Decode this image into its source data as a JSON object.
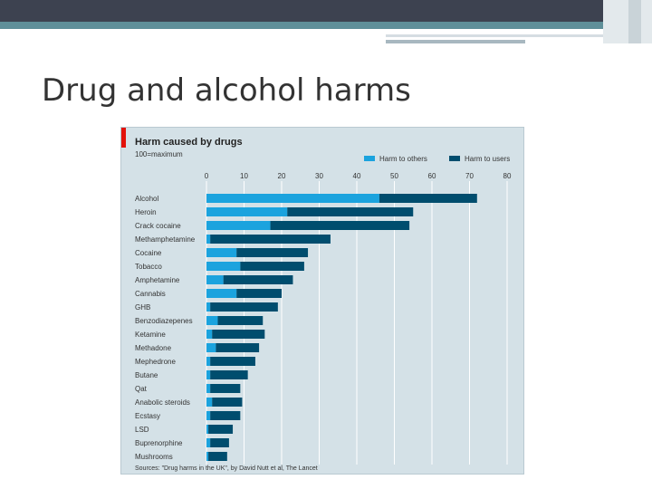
{
  "slide": {
    "title": "Drug and alcohol harms"
  },
  "chart_data": {
    "type": "bar",
    "orientation": "horizontal",
    "stacked": true,
    "title": "Harm caused by drugs",
    "subtitle": "100=maximum",
    "source": "Sources: \"Drug harms in the UK\", by David Nutt et al, The Lancet",
    "xlim": [
      0,
      80
    ],
    "xticks": [
      0,
      10,
      20,
      30,
      40,
      50,
      60,
      70,
      80
    ],
    "grid": true,
    "legend_position": "top-right",
    "categories": [
      "Alcohol",
      "Heroin",
      "Crack cocaine",
      "Methamphetamine",
      "Cocaine",
      "Tobacco",
      "Amphetamine",
      "Cannabis",
      "GHB",
      "Benzodiazepenes",
      "Ketamine",
      "Methadone",
      "Mephedrone",
      "Butane",
      "Qat",
      "Anabolic steroids",
      "Ecstasy",
      "LSD",
      "Buprenorphine",
      "Mushrooms"
    ],
    "series": [
      {
        "name": "Harm to others",
        "color": "#1ba3de",
        "values": [
          46,
          21.5,
          17,
          1,
          8,
          9,
          4.5,
          8,
          1,
          3,
          1.5,
          2.5,
          1,
          1,
          1,
          1.5,
          1,
          0.5,
          1,
          0.5
        ]
      },
      {
        "name": "Harm to users",
        "color": "#004d6e",
        "values": [
          26,
          33.5,
          37,
          32,
          19,
          17,
          18.5,
          12,
          18,
          12,
          14,
          11.5,
          12,
          10,
          8,
          8,
          8,
          6.5,
          5,
          5
        ]
      }
    ]
  }
}
